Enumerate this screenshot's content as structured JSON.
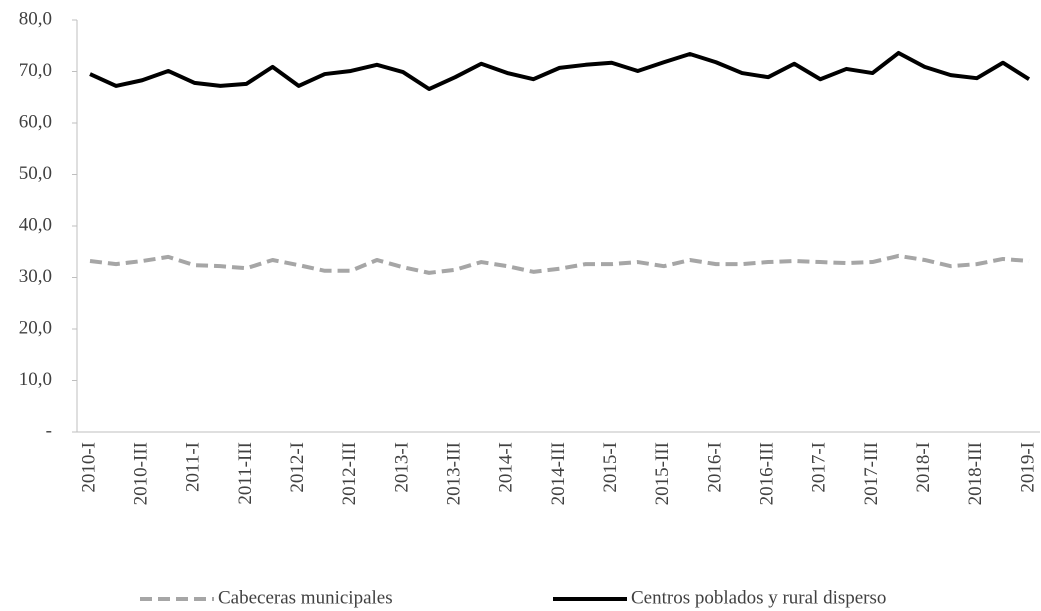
{
  "chart_data": {
    "type": "line",
    "categories": [
      "2010-I",
      null,
      "2010-III",
      null,
      "2011-I",
      null,
      "2011-III",
      null,
      "2012-I",
      null,
      "2012-III",
      null,
      "2013-I",
      null,
      "2013-III",
      null,
      "2014-I",
      null,
      "2014-III",
      null,
      "2015-I",
      null,
      "2015-III",
      null,
      "2016-I",
      null,
      "2016-III",
      null,
      "2017-I",
      null,
      "2017-III",
      null,
      "2018-I",
      null,
      "2018-III",
      null,
      "2019-I"
    ],
    "series": [
      {
        "name": "Cabeceras municipales",
        "color": "#a6a6a6",
        "dashed": true,
        "values": [
          33.2,
          32.6,
          33.2,
          34.0,
          32.4,
          32.2,
          31.8,
          33.4,
          32.4,
          31.3,
          31.3,
          33.4,
          32.0,
          30.9,
          31.5,
          33.0,
          32.2,
          31.1,
          31.7,
          32.6,
          32.6,
          33.0,
          32.2,
          33.4,
          32.6,
          32.6,
          33.0,
          33.2,
          33.0,
          32.8,
          33.0,
          34.2,
          33.4,
          32.2,
          32.6,
          33.6,
          33.2
        ]
      },
      {
        "name": "Centros poblados y rural disperso",
        "color": "#000000",
        "dashed": false,
        "values": [
          69.5,
          67.2,
          68.3,
          70.1,
          67.8,
          67.2,
          67.6,
          70.9,
          67.2,
          69.5,
          70.1,
          71.3,
          69.9,
          66.6,
          68.9,
          71.5,
          69.7,
          68.5,
          70.7,
          71.3,
          71.7,
          70.1,
          71.8,
          73.4,
          71.8,
          69.7,
          68.9,
          71.5,
          68.5,
          70.5,
          69.7,
          73.6,
          70.9,
          69.3,
          68.7,
          71.7,
          68.5
        ]
      }
    ],
    "ylim": [
      0,
      80
    ],
    "yticks": [
      {
        "value": 0,
        "label": "-"
      },
      {
        "value": 10,
        "label": "10,0"
      },
      {
        "value": 20,
        "label": "20,0"
      },
      {
        "value": 30,
        "label": "30,0"
      },
      {
        "value": 40,
        "label": "40,0"
      },
      {
        "value": 50,
        "label": "50,0"
      },
      {
        "value": 60,
        "label": "60,0"
      },
      {
        "value": 70,
        "label": "70,0"
      },
      {
        "value": 80,
        "label": "80,0"
      }
    ],
    "grid": false,
    "legend": "bottom"
  }
}
